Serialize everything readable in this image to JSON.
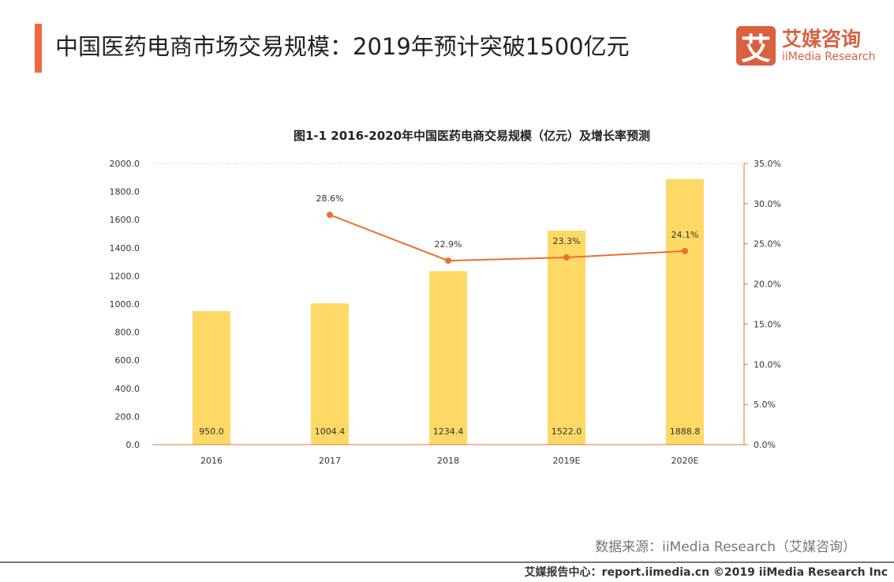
{
  "header": {
    "title": "中国医药电商市场交易规模：2019年预计突破1500亿元"
  },
  "logo": {
    "mark": "艾",
    "cn": "艾媒咨询",
    "en": "iiMedia Research"
  },
  "chart_data": {
    "type": "bar+line",
    "title": "图1-1 2016-2020年中国医药电商交易规模（亿元）及增长率预测",
    "categories": [
      "2016",
      "2017",
      "2018",
      "2019E",
      "2020E"
    ],
    "series": [
      {
        "type": "bar",
        "axis": "left",
        "values": [
          950.0,
          1004.4,
          1234.4,
          1522.0,
          1888.8
        ],
        "labels": [
          "950.0",
          "1004.4",
          "1234.4",
          "1522.0",
          "1888.8"
        ],
        "color": "#FFD966"
      },
      {
        "type": "line",
        "axis": "right",
        "values": [
          null,
          28.6,
          22.9,
          23.3,
          24.1
        ],
        "labels": [
          "",
          "28.6%",
          "22.9%",
          "23.3%",
          "24.1%"
        ],
        "color": "#E8722E"
      }
    ],
    "ylim": [
      0,
      2000
    ],
    "yticks": [
      "0.0",
      "200.0",
      "400.0",
      "600.0",
      "800.0",
      "1000.0",
      "1200.0",
      "1400.0",
      "1600.0",
      "1800.0",
      "2000.0"
    ],
    "y2lim": [
      0,
      35
    ],
    "y2ticks": [
      "0.0%",
      "5.0%",
      "10.0%",
      "15.0%",
      "20.0%",
      "25.0%",
      "30.0%",
      "35.0%"
    ],
    "legend": "none"
  },
  "footer": {
    "source": "数据来源：iiMedia Research（艾媒咨询）",
    "copyright": "艾媒报告中心：report.iimedia.cn  ©2019  iiMedia Research  Inc"
  }
}
